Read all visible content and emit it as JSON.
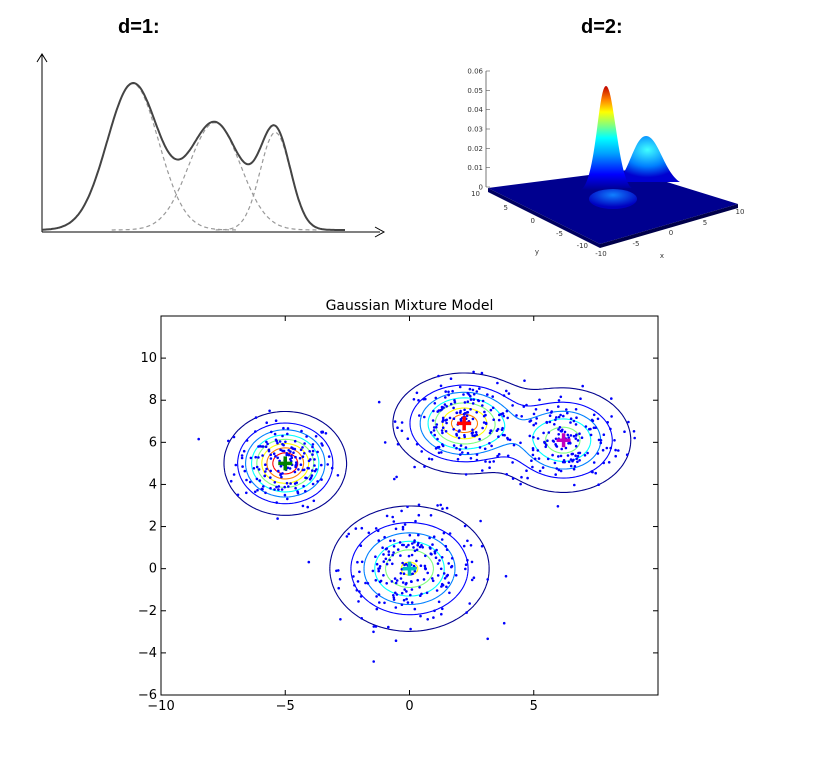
{
  "panels": {
    "d1_label": "d=1:",
    "d2_label": "d=2:"
  },
  "chart_data": [
    {
      "type": "line",
      "panel": "d=1",
      "title": "",
      "xlabel": "",
      "ylabel": "",
      "grid": false,
      "components": [
        {
          "mean": 0.3,
          "sd": 0.085,
          "weight": 0.3
        },
        {
          "mean": 0.57,
          "sd": 0.085,
          "weight": 0.22
        },
        {
          "mean": 0.77,
          "sd": 0.05,
          "weight": 0.2
        }
      ],
      "series": [
        {
          "style": "solid",
          "color": "#444444"
        },
        {
          "style": "dashed",
          "color": "#999999"
        }
      ]
    },
    {
      "type": "surface",
      "panel": "d=2",
      "title": "",
      "xlabel": "x",
      "ylabel": "y",
      "zlim": [
        0,
        0.06
      ],
      "z_ticks": [
        "0",
        "0.01",
        "0.02",
        "0.03",
        "0.04",
        "0.05",
        "0.06"
      ],
      "x_ticks": [
        "-10",
        "-5",
        "0",
        "5",
        "10"
      ],
      "y_ticks": [
        "10",
        "5",
        "0",
        "-5",
        "-10"
      ],
      "peaks": [
        {
          "x": -1,
          "y": 3,
          "z": 0.055
        },
        {
          "x": 4,
          "y": 3,
          "z": 0.025
        },
        {
          "x": 1,
          "y": -5,
          "z": 0.008
        }
      ]
    },
    {
      "type": "scatter",
      "panel": "Gaussian Mixture Model",
      "title": "Gaussian Mixture Model",
      "xlabel": "",
      "ylabel": "",
      "xlim": [
        -10,
        10
      ],
      "ylim": [
        -6,
        12
      ],
      "x_ticks": [
        "−10",
        "−5",
        "0",
        "5"
      ],
      "y_ticks": [
        "−6",
        "−4",
        "−2",
        "0",
        "2",
        "4",
        "6",
        "8",
        "10"
      ],
      "x_tick_values": [
        -10,
        -5,
        0,
        5
      ],
      "y_tick_values": [
        -6,
        -4,
        -2,
        0,
        2,
        4,
        6,
        8,
        10
      ],
      "grid": false,
      "point_color": "#0000ff",
      "components": [
        {
          "mean": [
            -5,
            5
          ],
          "sd": [
            1.0,
            1.0
          ],
          "weight": 0.25,
          "n_points": 180,
          "marker_color": "#008000"
        },
        {
          "mean": [
            0,
            0
          ],
          "sd": [
            1.4,
            1.3
          ],
          "weight": 0.3,
          "n_points": 230,
          "marker_color": "#00bfbf"
        },
        {
          "mean": [
            2.2,
            6.9
          ],
          "sd": [
            1.2,
            1.0
          ],
          "weight": 0.25,
          "n_points": 200,
          "marker_color": "#ff0000"
        },
        {
          "mean": [
            6.2,
            6.1
          ],
          "sd": [
            1.2,
            1.1
          ],
          "weight": 0.2,
          "n_points": 170,
          "marker_color": "#bf00bf"
        }
      ],
      "contour_colors": [
        "#00008f",
        "#0000ff",
        "#0080ff",
        "#00ffff",
        "#80ff80",
        "#ffff00",
        "#ff8000",
        "#ff0000",
        "#800000"
      ]
    }
  ]
}
